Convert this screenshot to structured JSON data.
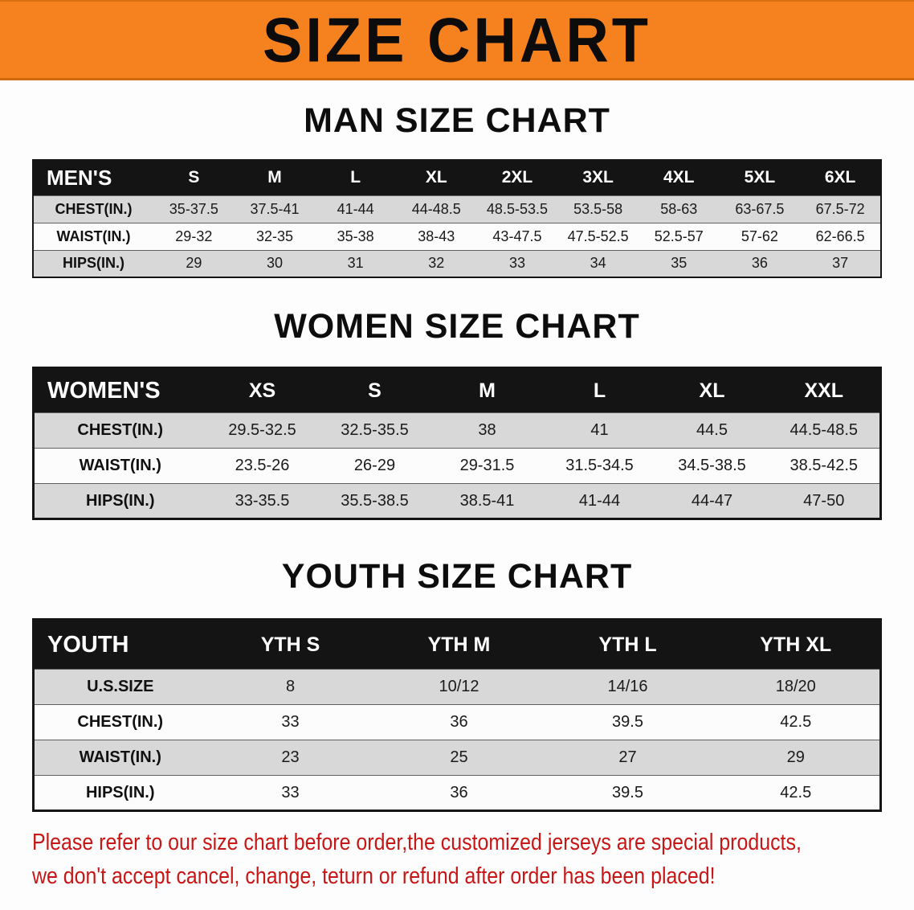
{
  "banner": {
    "title": "SIZE CHART",
    "bg_color": "#f5821f"
  },
  "chart_data": [
    {
      "type": "table",
      "title": "MAN SIZE CHART",
      "corner_label": "MEN'S",
      "columns": [
        "S",
        "M",
        "L",
        "XL",
        "2XL",
        "3XL",
        "4XL",
        "5XL",
        "6XL"
      ],
      "rows": [
        {
          "label": "CHEST(IN.)",
          "values": [
            "35-37.5",
            "37.5-41",
            "41-44",
            "44-48.5",
            "48.5-53.5",
            "53.5-58",
            "58-63",
            "63-67.5",
            "67.5-72"
          ]
        },
        {
          "label": "WAIST(IN.)",
          "values": [
            "29-32",
            "32-35",
            "35-38",
            "38-43",
            "43-47.5",
            "47.5-52.5",
            "52.5-57",
            "57-62",
            "62-66.5"
          ]
        },
        {
          "label": "HIPS(IN.)",
          "values": [
            "29",
            "30",
            "31",
            "32",
            "33",
            "34",
            "35",
            "36",
            "37"
          ]
        }
      ]
    },
    {
      "type": "table",
      "title": "WOMEN SIZE CHART",
      "corner_label": "WOMEN'S",
      "columns": [
        "XS",
        "S",
        "M",
        "L",
        "XL",
        "XXL"
      ],
      "rows": [
        {
          "label": "CHEST(IN.)",
          "values": [
            "29.5-32.5",
            "32.5-35.5",
            "38",
            "41",
            "44.5",
            "44.5-48.5"
          ]
        },
        {
          "label": "WAIST(IN.)",
          "values": [
            "23.5-26",
            "26-29",
            "29-31.5",
            "31.5-34.5",
            "34.5-38.5",
            "38.5-42.5"
          ]
        },
        {
          "label": "HIPS(IN.)",
          "values": [
            "33-35.5",
            "35.5-38.5",
            "38.5-41",
            "41-44",
            "44-47",
            "47-50"
          ]
        }
      ]
    },
    {
      "type": "table",
      "title": "YOUTH SIZE CHART",
      "corner_label": "YOUTH",
      "columns": [
        "YTH S",
        "YTH M",
        "YTH L",
        "YTH XL"
      ],
      "rows": [
        {
          "label": "U.S.SIZE",
          "values": [
            "8",
            "10/12",
            "14/16",
            "18/20"
          ]
        },
        {
          "label": "CHEST(IN.)",
          "values": [
            "33",
            "36",
            "39.5",
            "42.5"
          ]
        },
        {
          "label": "WAIST(IN.)",
          "values": [
            "23",
            "25",
            "27",
            "29"
          ]
        },
        {
          "label": "HIPS(IN.)",
          "values": [
            "33",
            "36",
            "39.5",
            "42.5"
          ]
        }
      ]
    }
  ],
  "footer": {
    "line1": "Please refer to our size chart before order,the customized jerseys are special products,",
    "line2": "we don't accept cancel, change, teturn or refund after order has been placed!",
    "color": "#c81515"
  }
}
